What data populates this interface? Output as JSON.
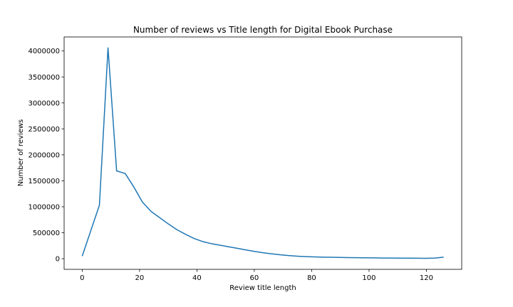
{
  "chart_data": {
    "type": "line",
    "title": "Number of reviews vs Title length for Digital Ebook Purchase",
    "xlabel": "Review title length",
    "ylabel": "Number of reviews",
    "xlim": [
      -6.3,
      132.3
    ],
    "ylim": [
      -205000,
      4270000
    ],
    "x_ticks": [
      0,
      20,
      40,
      60,
      80,
      100,
      120
    ],
    "x_tick_labels": [
      "0",
      "20",
      "40",
      "60",
      "80",
      "100",
      "120"
    ],
    "y_ticks": [
      0,
      500000,
      1000000,
      1500000,
      2000000,
      2500000,
      3000000,
      3500000,
      4000000
    ],
    "y_tick_labels": [
      "0",
      "500000",
      "1000000",
      "1500000",
      "2000000",
      "2500000",
      "3000000",
      "3500000",
      "4000000"
    ],
    "grid": false,
    "legend": "none",
    "series": [
      {
        "color": "#1f77b4",
        "x": [
          0,
          3,
          6,
          9,
          12,
          15,
          18,
          21,
          24,
          27,
          30,
          33,
          36,
          39,
          42,
          45,
          48,
          51,
          54,
          57,
          60,
          63,
          66,
          69,
          72,
          75,
          78,
          81,
          84,
          87,
          90,
          93,
          96,
          99,
          102,
          105,
          108,
          111,
          114,
          117,
          120,
          123,
          126
        ],
        "y": [
          50000,
          540000,
          1030000,
          4060000,
          1690000,
          1640000,
          1380000,
          1090000,
          910000,
          790000,
          670000,
          560000,
          470000,
          390000,
          330000,
          290000,
          260000,
          230000,
          200000,
          170000,
          140000,
          115000,
          95000,
          75000,
          60000,
          48000,
          40000,
          35000,
          30000,
          27000,
          24000,
          21000,
          19000,
          17000,
          15000,
          13000,
          12000,
          11000,
          10000,
          9000,
          8000,
          12000,
          30000
        ]
      }
    ]
  }
}
